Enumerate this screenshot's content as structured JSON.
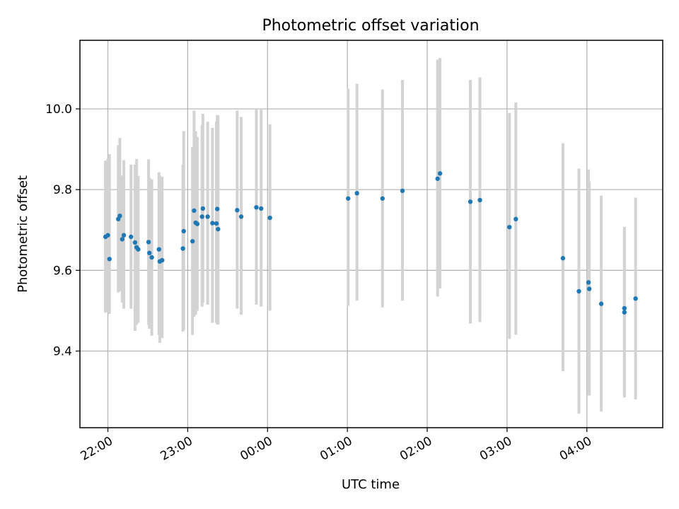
{
  "chart_data": {
    "type": "scatter",
    "title": "Photometric offset variation",
    "xlabel": "UTC time",
    "ylabel": "Photometric offset",
    "x_unit": "hours",
    "xlim": [
      21.65,
      28.95
    ],
    "ylim": [
      9.21,
      10.17
    ],
    "xticks": [
      {
        "value": 22,
        "label": "22:00"
      },
      {
        "value": 23,
        "label": "23:00"
      },
      {
        "value": 24,
        "label": "00:00"
      },
      {
        "value": 25,
        "label": "01:00"
      },
      {
        "value": 26,
        "label": "02:00"
      },
      {
        "value": 27,
        "label": "03:00"
      },
      {
        "value": 28,
        "label": "04:00"
      }
    ],
    "yticks": [
      {
        "value": 9.4,
        "label": "9.4"
      },
      {
        "value": 9.6,
        "label": "9.6"
      },
      {
        "value": 9.8,
        "label": "9.8"
      },
      {
        "value": 10.0,
        "label": "10.0"
      }
    ],
    "grid": true,
    "colors": {
      "point": "#1f77b4",
      "errorbar": "#d3d3d3"
    },
    "series": [
      {
        "x": [
          21.97,
          22.0,
          22.02,
          22.13,
          22.15,
          22.18,
          22.2,
          22.29,
          22.34,
          22.36,
          22.38,
          22.51,
          22.52,
          22.55,
          22.64,
          22.65,
          22.68,
          22.94,
          22.95,
          23.06,
          23.08,
          23.1,
          23.12,
          23.18,
          23.19,
          23.25,
          23.31,
          23.36,
          23.37,
          23.38,
          23.62,
          23.67,
          23.86,
          23.92,
          24.03,
          25.01,
          25.12,
          25.44,
          25.69,
          26.13,
          26.16,
          26.54,
          26.66,
          27.03,
          27.11,
          27.7,
          27.9,
          28.02,
          28.03,
          28.18,
          28.47,
          28.47,
          28.61
        ],
        "y": [
          9.683,
          9.687,
          9.628,
          9.727,
          9.735,
          9.677,
          9.687,
          9.683,
          9.669,
          9.657,
          9.652,
          9.67,
          9.643,
          9.632,
          9.652,
          9.622,
          9.625,
          9.654,
          9.697,
          9.672,
          9.748,
          9.718,
          9.715,
          9.733,
          9.753,
          9.733,
          9.717,
          9.716,
          9.752,
          9.702,
          9.749,
          9.733,
          9.756,
          9.753,
          9.73,
          9.778,
          9.791,
          9.778,
          9.797,
          9.827,
          9.84,
          9.77,
          9.774,
          9.707,
          9.727,
          9.63,
          9.548,
          9.57,
          9.554,
          9.517,
          9.506,
          9.496,
          9.53
        ],
        "yerr_low": [
          9.495,
          9.497,
          9.492,
          9.545,
          9.548,
          9.52,
          9.505,
          9.505,
          9.45,
          9.465,
          9.47,
          9.465,
          9.455,
          9.438,
          9.44,
          9.42,
          9.432,
          9.448,
          9.452,
          9.44,
          9.485,
          9.49,
          9.5,
          9.51,
          9.52,
          9.515,
          9.47,
          9.47,
          9.466,
          9.466,
          9.505,
          9.49,
          9.515,
          9.51,
          9.5,
          9.512,
          9.525,
          9.508,
          9.525,
          9.535,
          9.555,
          9.468,
          9.472,
          9.43,
          9.44,
          9.35,
          9.245,
          9.29,
          9.29,
          9.25,
          9.29,
          9.285,
          9.28
        ],
        "yerr_high": [
          9.872,
          9.877,
          9.888,
          9.91,
          9.928,
          9.835,
          9.873,
          9.862,
          9.862,
          9.876,
          9.834,
          9.875,
          9.83,
          9.826,
          9.843,
          9.835,
          9.832,
          9.862,
          9.945,
          9.905,
          9.996,
          9.945,
          9.93,
          9.96,
          9.988,
          9.968,
          9.953,
          9.968,
          9.985,
          9.984,
          9.996,
          9.98,
          9.998,
          9.998,
          9.962,
          10.05,
          10.062,
          10.048,
          10.072,
          10.122,
          10.126,
          10.072,
          10.078,
          9.99,
          10.016,
          9.915,
          9.852,
          9.85,
          9.82,
          9.785,
          9.708,
          9.702,
          9.78
        ]
      }
    ]
  }
}
